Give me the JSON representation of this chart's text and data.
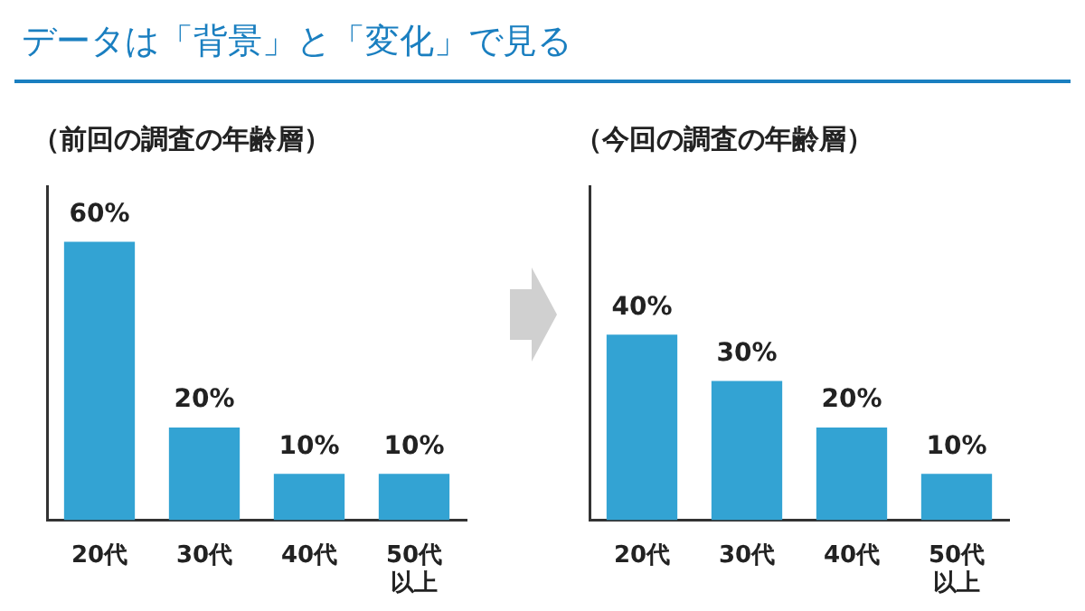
{
  "chart_data": [
    {
      "type": "bar",
      "annotations": [
        "データは「背景」と「変化」で見る"
      ],
      "title": "（前回の調査の年齢層）",
      "categories": [
        "20代",
        "30代",
        "40代",
        "50代以上"
      ],
      "values": [
        60,
        20,
        10,
        10
      ],
      "value_labels": [
        "60%",
        "20%",
        "10%",
        "10%"
      ],
      "color": "#33a3d3",
      "grid": false,
      "legend": false
    },
    {
      "type": "bar",
      "title": "（今回の調査の年齢層）",
      "categories": [
        "20代",
        "30代",
        "40代",
        "50代以上"
      ],
      "values": [
        40,
        30,
        20,
        10
      ],
      "value_labels": [
        "40%",
        "30%",
        "20%",
        "10%"
      ],
      "color": "#33a3d3",
      "grid": false,
      "legend": false
    }
  ]
}
